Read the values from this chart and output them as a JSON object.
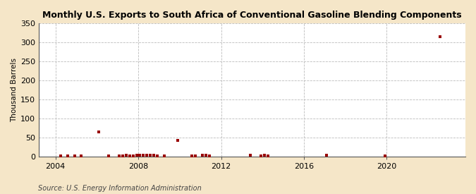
{
  "title": "Monthly U.S. Exports to South Africa of Conventional Gasoline Blending Components",
  "ylabel": "Thousand Barrels",
  "source": "Source: U.S. Energy Information Administration",
  "fig_bg_color": "#f5e6c8",
  "plot_bg_color": "#ffffff",
  "marker_color": "#990000",
  "marker_size": 6,
  "ylim": [
    0,
    350
  ],
  "yticks": [
    0,
    50,
    100,
    150,
    200,
    250,
    300,
    350
  ],
  "xlim": [
    2003.2,
    2023.8
  ],
  "xticks": [
    2004,
    2008,
    2012,
    2016,
    2020
  ],
  "vgrid_years": [
    2004,
    2008,
    2012,
    2016,
    2020
  ],
  "data_points": [
    [
      2004.25,
      1
    ],
    [
      2004.58,
      2
    ],
    [
      2004.92,
      1
    ],
    [
      2005.25,
      1
    ],
    [
      2006.08,
      65
    ],
    [
      2006.58,
      1
    ],
    [
      2007.08,
      1
    ],
    [
      2007.25,
      2
    ],
    [
      2007.42,
      3
    ],
    [
      2007.58,
      2
    ],
    [
      2007.75,
      2
    ],
    [
      2007.92,
      3
    ],
    [
      2008.08,
      4
    ],
    [
      2008.25,
      3
    ],
    [
      2008.42,
      4
    ],
    [
      2008.58,
      3
    ],
    [
      2008.75,
      3
    ],
    [
      2008.92,
      2
    ],
    [
      2009.25,
      2
    ],
    [
      2009.92,
      42
    ],
    [
      2010.58,
      2
    ],
    [
      2010.75,
      2
    ],
    [
      2011.08,
      3
    ],
    [
      2011.25,
      3
    ],
    [
      2011.42,
      2
    ],
    [
      2013.42,
      3
    ],
    [
      2013.92,
      2
    ],
    [
      2014.08,
      3
    ],
    [
      2014.25,
      2
    ],
    [
      2017.08,
      3
    ],
    [
      2019.92,
      2
    ],
    [
      2022.58,
      315
    ]
  ]
}
